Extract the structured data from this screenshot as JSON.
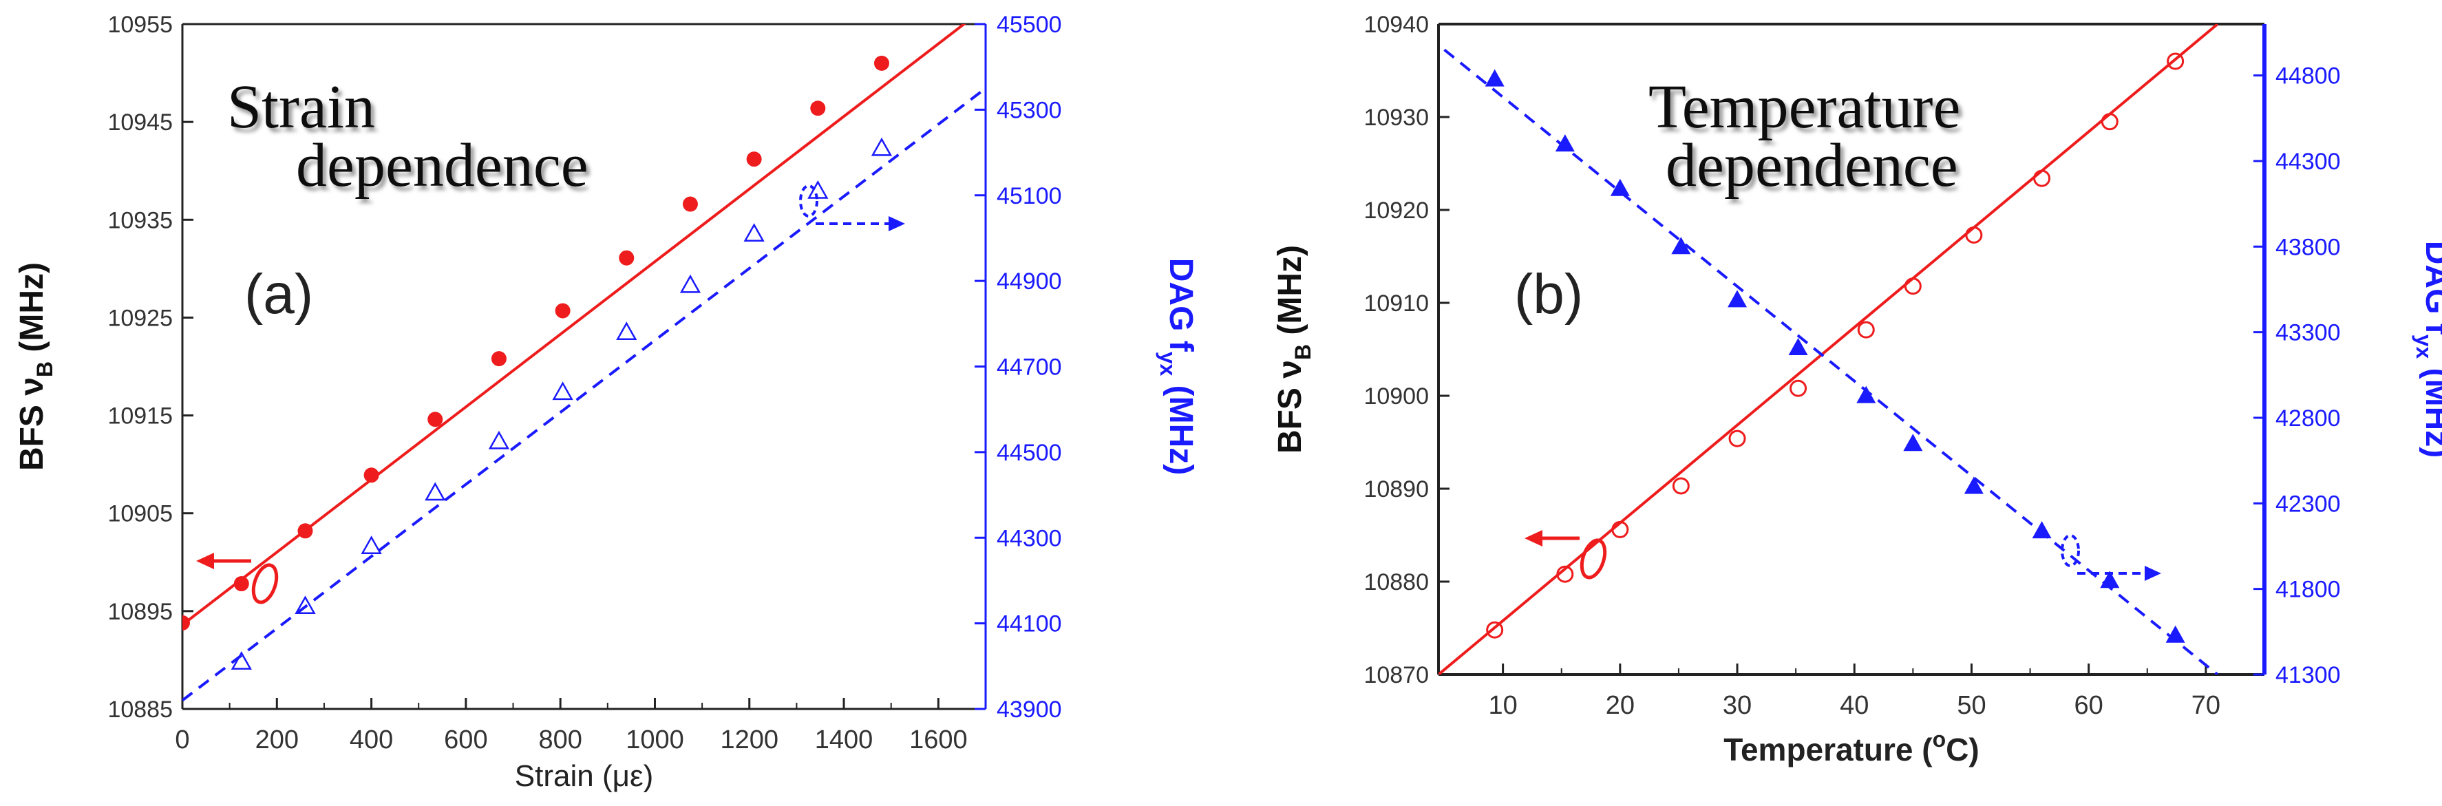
{
  "colors": {
    "red": "#ee1c1c",
    "blue": "#1a1aff",
    "axis": "#222222"
  },
  "chart_data": [
    {
      "type": "scatter",
      "panel_label": "(a)",
      "title_lines": [
        "Strain",
        "dependence"
      ],
      "xlabel": "Strain (με)",
      "ylabel_left": "BFS ν",
      "ylabel_left_sub": "B",
      "ylabel_left_unit": " (MHz)",
      "ylabel_right": "DAG f",
      "ylabel_right_sub": "yx",
      "ylabel_right_unit": " (MHz)",
      "xlim": [
        0,
        1700
      ],
      "ylim_left": [
        10885,
        10955
      ],
      "ylim_right": [
        43900,
        45500
      ],
      "xticks": [
        0,
        200,
        400,
        600,
        800,
        1000,
        1200,
        1400,
        1600
      ],
      "yticks_left": [
        10885,
        10895,
        10905,
        10915,
        10925,
        10935,
        10945,
        10955
      ],
      "yticks_right": [
        43900,
        44100,
        44300,
        44500,
        44700,
        44900,
        45100,
        45300,
        45500
      ],
      "series": [
        {
          "name": "BFS",
          "axis": "left",
          "marker": "filled-circle",
          "color": "#ee1c1c",
          "x": [
            0,
            125,
            260,
            400,
            535,
            670,
            805,
            940,
            1075,
            1210,
            1345,
            1480
          ],
          "y": [
            10893.8,
            10897.8,
            10903.2,
            10908.9,
            10914.6,
            10920.8,
            10925.7,
            10931.1,
            10936.6,
            10941.2,
            10946.4,
            10951.0
          ],
          "fit": {
            "x": [
              0,
              1700
            ],
            "y": [
              10893.6,
              10956.7
            ],
            "style": "solid"
          }
        },
        {
          "name": "DAG",
          "axis": "right",
          "marker": "open-triangle",
          "color": "#1a1aff",
          "x": [
            125,
            260,
            400,
            535,
            670,
            805,
            940,
            1075,
            1210,
            1345,
            1480
          ],
          "y": [
            44010,
            44140,
            44280,
            44405,
            44525,
            44640,
            44780,
            44890,
            45010,
            45110,
            45210
          ],
          "fit": {
            "x": [
              0,
              1700
            ],
            "y": [
              43920,
              45350
            ],
            "style": "dashed"
          }
        }
      ],
      "annotations": [
        {
          "type": "ellipse-arrow",
          "series": "BFS",
          "direction": "left"
        },
        {
          "type": "ellipse-arrow",
          "series": "DAG",
          "direction": "right"
        }
      ]
    },
    {
      "type": "scatter",
      "panel_label": "(b)",
      "title_lines": [
        "Temperature",
        "dependence"
      ],
      "xlabel": "Temperature (",
      "xlabel_sup": "o",
      "xlabel_end": "C)",
      "ylabel_left": "BFS ν",
      "ylabel_left_sub": "B",
      "ylabel_left_unit": " (MHz)",
      "ylabel_right": "DAG f",
      "ylabel_right_sub": "yx",
      "ylabel_right_unit": " (MHz)",
      "xlim": [
        4.5,
        75
      ],
      "ylim_left": [
        10870,
        10940
      ],
      "ylim_right": [
        41300,
        45100
      ],
      "xticks": [
        10,
        20,
        30,
        40,
        50,
        60,
        70
      ],
      "yticks_left": [
        10870,
        10880,
        10890,
        10900,
        10910,
        10920,
        10930,
        10940
      ],
      "yticks_right": [
        41300,
        41800,
        42300,
        42800,
        43300,
        43800,
        44300,
        44800
      ],
      "series": [
        {
          "name": "BFS",
          "axis": "left",
          "marker": "open-circle",
          "color": "#ee1c1c",
          "x": [
            9.3,
            15.3,
            20.0,
            25.2,
            30.0,
            35.2,
            41.0,
            45.0,
            50.2,
            56.0,
            61.8,
            67.4
          ],
          "y": [
            10874.8,
            10880.8,
            10885.6,
            10890.3,
            10895.4,
            10900.8,
            10907.1,
            10911.8,
            10917.3,
            10923.4,
            10929.5,
            10936.0
          ],
          "fit": {
            "x": [
              4.5,
              71.0
            ],
            "y": [
              10870.0,
              10940.0
            ],
            "style": "solid"
          }
        },
        {
          "name": "DAG",
          "axis": "right",
          "marker": "filled-triangle",
          "color": "#1a1aff",
          "x": [
            9.3,
            15.3,
            20.0,
            25.2,
            30.0,
            35.2,
            41.0,
            45.0,
            50.2,
            56.0,
            61.8,
            67.4
          ],
          "y": [
            44780,
            44400,
            44140,
            43800,
            43490,
            43210,
            42930,
            42650,
            42400,
            42140,
            41850,
            41530
          ],
          "fit": {
            "x": [
              5.0,
              71.0
            ],
            "y": [
              44950,
              41300
            ],
            "style": "dashed"
          }
        }
      ],
      "annotations": [
        {
          "type": "ellipse-arrow",
          "series": "BFS",
          "direction": "left"
        },
        {
          "type": "ellipse-arrow",
          "series": "DAG",
          "direction": "right"
        }
      ]
    }
  ]
}
